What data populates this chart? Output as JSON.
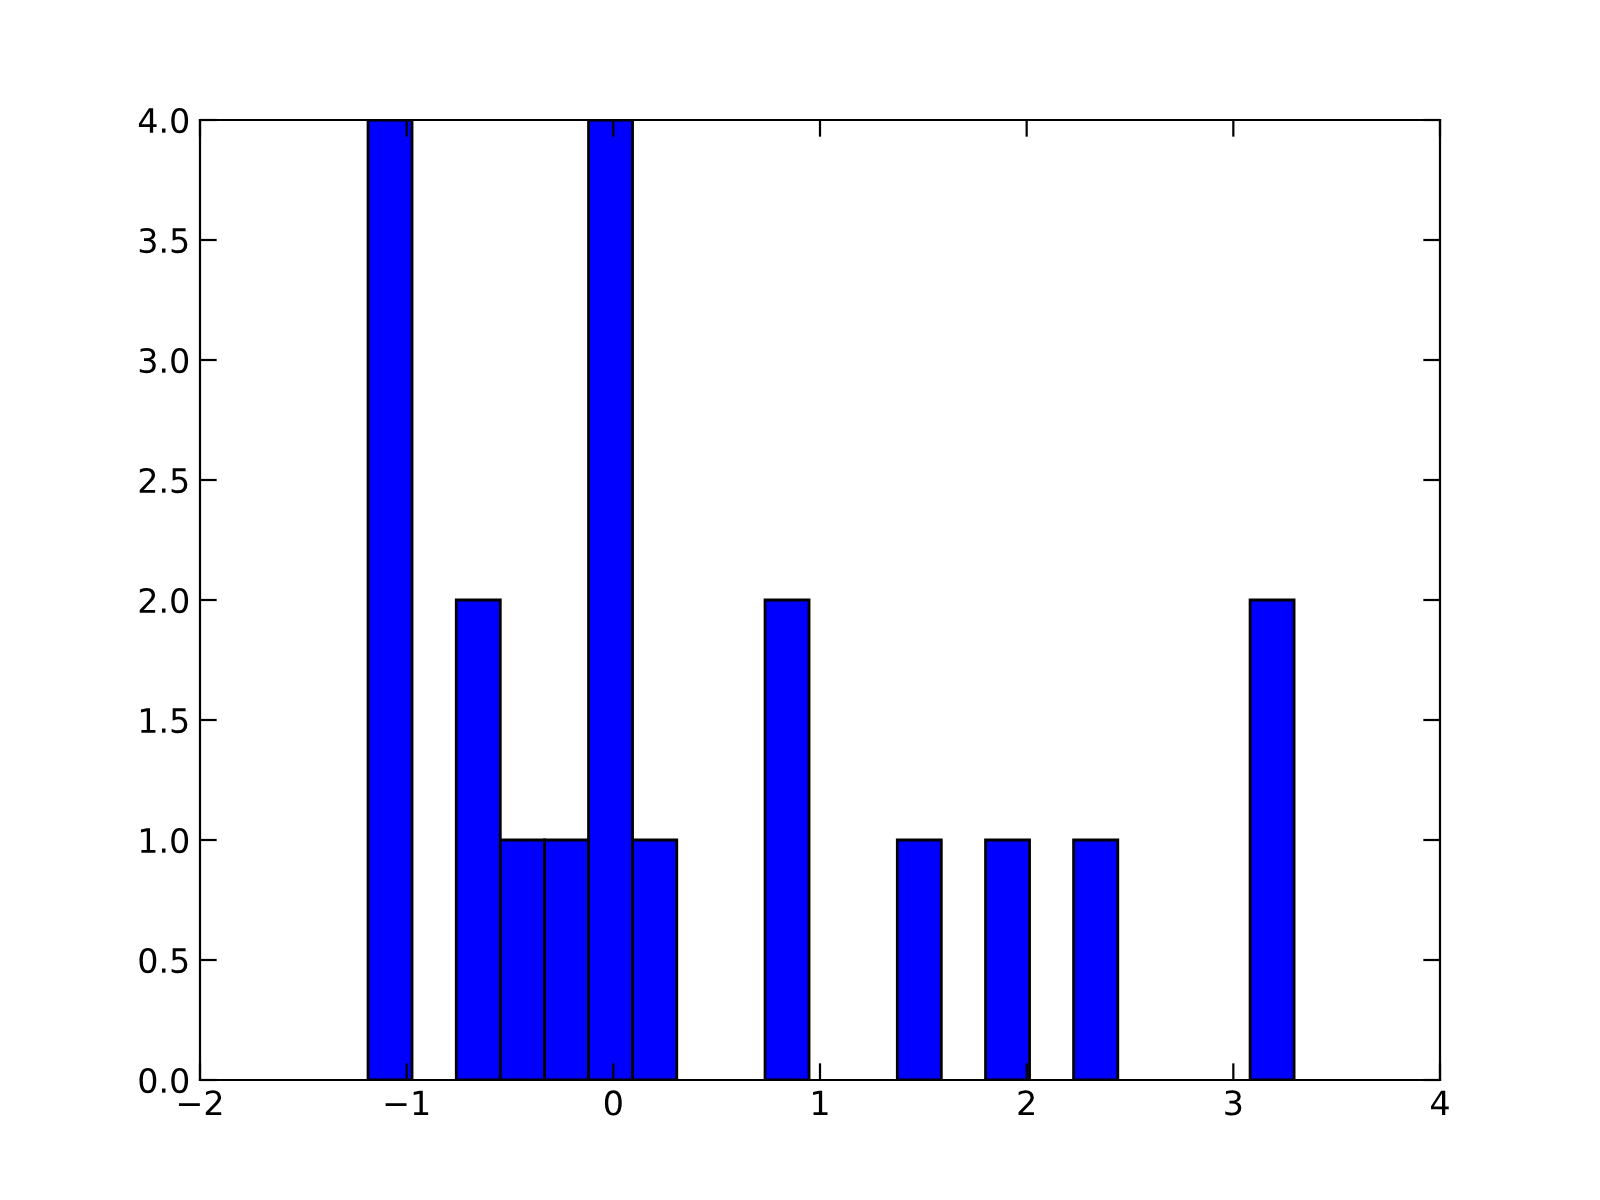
{
  "chart_data": {
    "type": "histogram",
    "bins": [
      -1.187,
      -0.974,
      -0.76,
      -0.547,
      -0.333,
      -0.12,
      0.093,
      0.307,
      0.52,
      0.734,
      0.947,
      1.16,
      1.374,
      1.587,
      1.801,
      2.014,
      2.227,
      2.441,
      2.654,
      2.868,
      3.081,
      3.294
    ],
    "values": [
      4,
      0,
      2,
      1,
      1,
      4,
      1,
      0,
      0,
      2,
      0,
      0,
      1,
      0,
      1,
      0,
      1,
      0,
      0,
      0,
      2
    ],
    "color": "#0000ff",
    "xlim": [
      -2,
      4
    ],
    "xticks": [
      {
        "value": -2,
        "label": "−2"
      },
      {
        "value": -1,
        "label": "−1"
      },
      0,
      1,
      2,
      3,
      4
    ],
    "ylim": [
      0,
      4
    ],
    "yticks": [
      {
        "value": 0,
        "label": "0.0"
      },
      {
        "value": 0.5,
        "label": "0.5"
      },
      {
        "value": 1,
        "label": "1.0"
      },
      {
        "value": 1.5,
        "label": "1.5"
      },
      {
        "value": 2,
        "label": "2.0"
      },
      {
        "value": 2.5,
        "label": "2.5"
      },
      {
        "value": 3,
        "label": "3.0"
      },
      {
        "value": 3.5,
        "label": "3.5"
      },
      {
        "value": 4,
        "label": "4.0"
      }
    ],
    "grid": false
  }
}
